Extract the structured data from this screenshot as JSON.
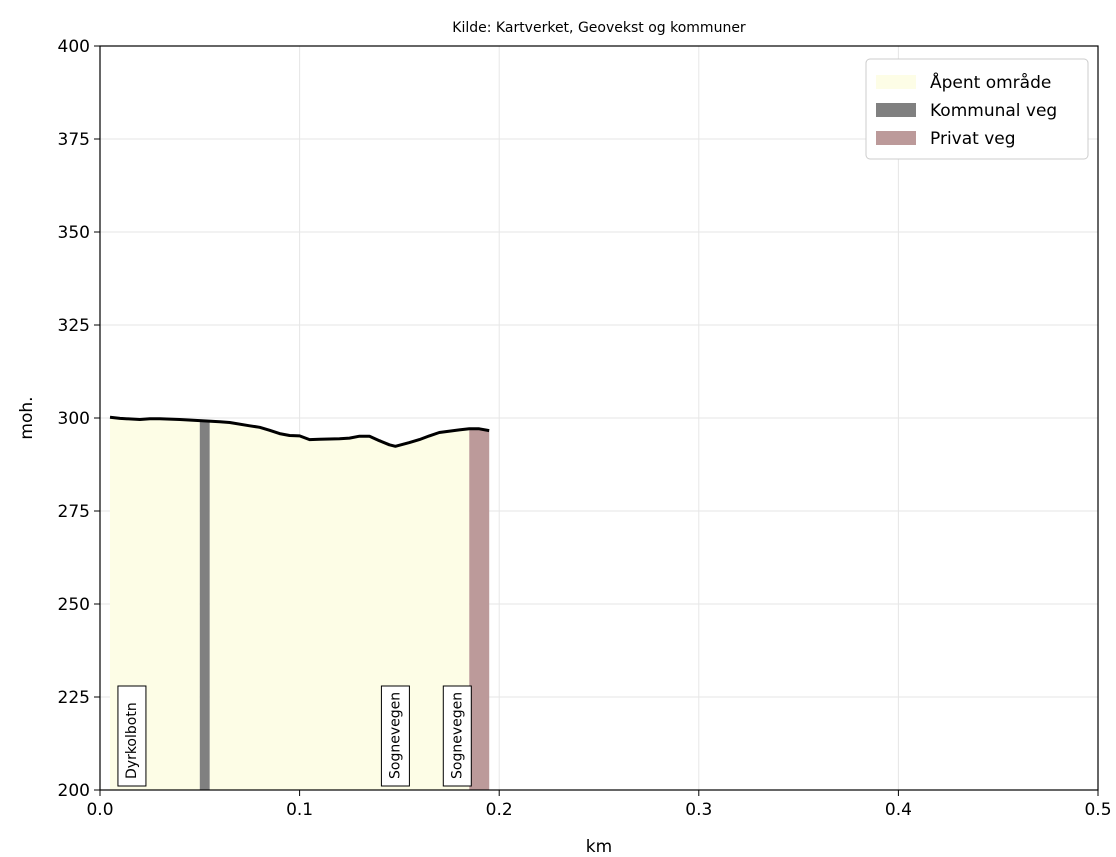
{
  "chart_data": {
    "type": "area",
    "title": "Kilde: Kartverket, Geovekst og kommuner",
    "xlabel": "km",
    "ylabel": "moh.",
    "xlim": [
      0.0,
      0.5
    ],
    "ylim": [
      200,
      400
    ],
    "x_ticks": [
      "0.0",
      "0.1",
      "0.2",
      "0.3",
      "0.4",
      "0.5"
    ],
    "y_ticks": [
      "200",
      "225",
      "250",
      "275",
      "300",
      "325",
      "350",
      "375",
      "400"
    ],
    "grid": true,
    "legend_placement": "top-right",
    "legend": [
      {
        "label": "Åpent område",
        "color": "#fdfde6"
      },
      {
        "label": "Kommunal veg",
        "color": "#808080"
      },
      {
        "label": "Privat veg",
        "color": "#bc9a9a"
      }
    ],
    "elevation_profile": {
      "x": [
        0.005,
        0.01,
        0.02,
        0.025,
        0.03,
        0.04,
        0.05,
        0.06,
        0.065,
        0.075,
        0.08,
        0.085,
        0.09,
        0.095,
        0.1,
        0.105,
        0.11,
        0.12,
        0.125,
        0.13,
        0.135,
        0.14,
        0.145,
        0.148,
        0.155,
        0.16,
        0.165,
        0.17,
        0.18,
        0.185,
        0.19,
        0.195
      ],
      "y": [
        300.2,
        299.9,
        299.6,
        299.8,
        299.8,
        299.6,
        299.3,
        299.0,
        298.8,
        297.9,
        297.5,
        296.7,
        295.8,
        295.3,
        295.2,
        294.2,
        294.3,
        294.4,
        294.6,
        295.1,
        295.1,
        293.9,
        292.8,
        292.4,
        293.4,
        294.2,
        295.2,
        296.1,
        296.8,
        297.1,
        297.1,
        296.6
      ]
    },
    "segments": [
      {
        "type": "Åpent område",
        "x_start": 0.005,
        "x_end": 0.05
      },
      {
        "type": "Kommunal veg",
        "x_start": 0.05,
        "x_end": 0.055
      },
      {
        "type": "Åpent område",
        "x_start": 0.055,
        "x_end": 0.185
      },
      {
        "type": "Privat veg",
        "x_start": 0.185,
        "x_end": 0.195
      }
    ],
    "annotations": [
      {
        "text": "Dyrkolbotn",
        "x": 0.015
      },
      {
        "text": "Sognevegen",
        "x": 0.147
      },
      {
        "text": "Sognevegen",
        "x": 0.178
      }
    ]
  }
}
